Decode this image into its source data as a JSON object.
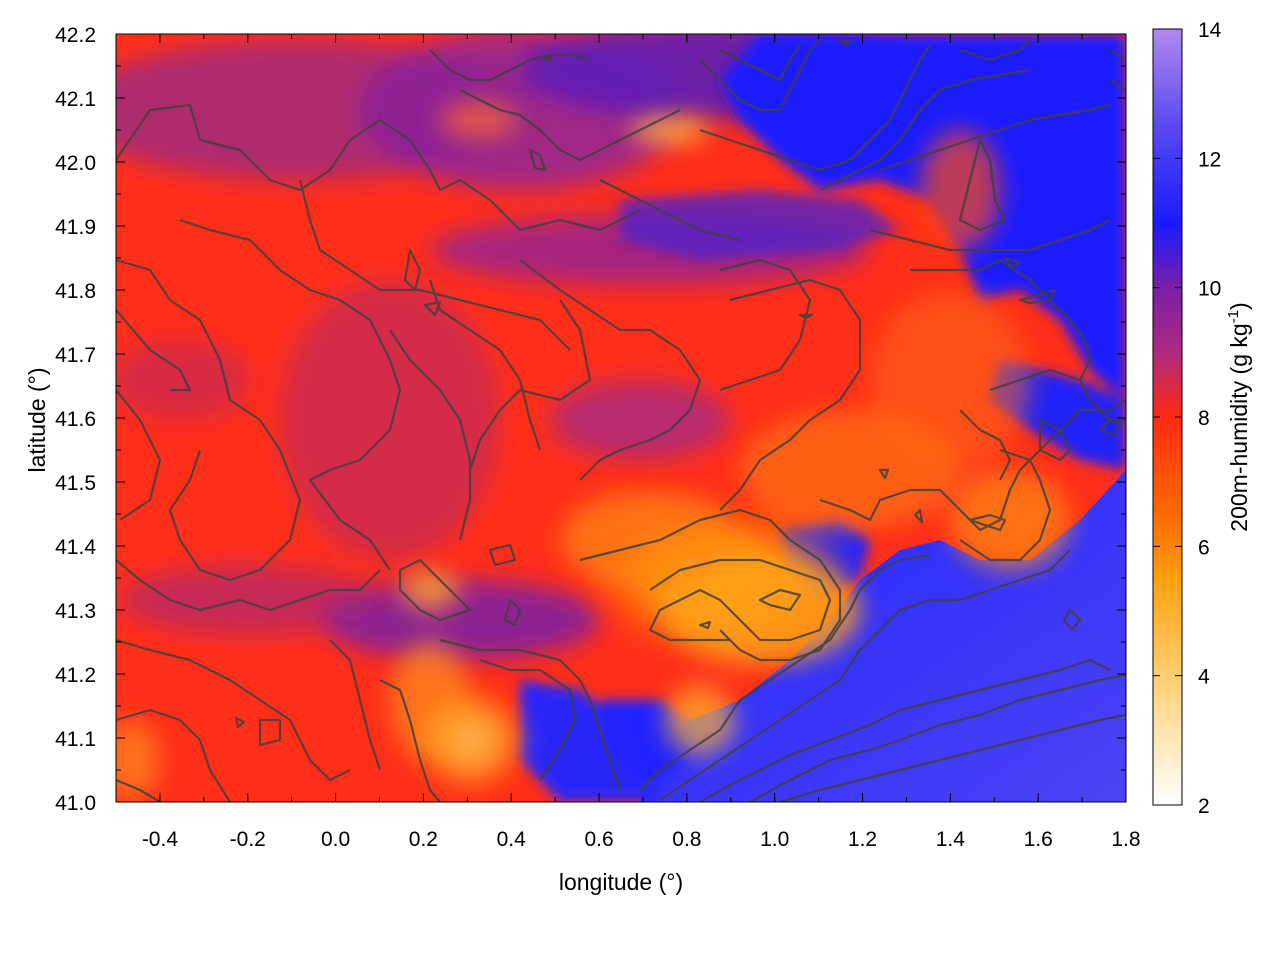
{
  "chart_data": {
    "type": "heatmap",
    "title": "",
    "xlabel": "longitude (°)",
    "ylabel": "latitude (°)",
    "colorbar_label_main": "200m-humidity (g kg",
    "colorbar_label_sup": "-1",
    "colorbar_label_end": ")",
    "xlim": [
      -0.5,
      1.8
    ],
    "ylim": [
      41.0,
      42.2
    ],
    "x_ticks": [
      "-0.4",
      "-0.2",
      "0.0",
      "0.2",
      "0.4",
      "0.6",
      "0.8",
      "1.0",
      "1.2",
      "1.4",
      "1.6",
      "1.8"
    ],
    "x_tick_values": [
      -0.4,
      -0.2,
      0.0,
      0.2,
      0.4,
      0.6,
      0.8,
      1.0,
      1.2,
      1.4,
      1.6,
      1.8
    ],
    "y_ticks": [
      "41.0",
      "41.1",
      "41.2",
      "41.3",
      "41.4",
      "41.5",
      "41.6",
      "41.7",
      "41.8",
      "41.9",
      "42.0",
      "42.1",
      "42.2"
    ],
    "y_tick_values": [
      41.0,
      41.1,
      41.2,
      41.3,
      41.4,
      41.5,
      41.6,
      41.7,
      41.8,
      41.9,
      42.0,
      42.1,
      42.2
    ],
    "colorbar_range": [
      2,
      14
    ],
    "colorbar_ticks": [
      "2",
      "4",
      "6",
      "8",
      "10",
      "12",
      "14"
    ],
    "colorbar_tick_values": [
      2,
      4,
      6,
      8,
      10,
      12,
      14
    ],
    "colormap": [
      "#ffffff",
      "#ffcf70",
      "#ffa010",
      "#ff6a00",
      "#ff2a10",
      "#b02a80",
      "#7a1fa8",
      "#1a1aff",
      "#5a4af0",
      "#b08af0"
    ],
    "colormap_stops": [
      2,
      4,
      5.5,
      6.5,
      8,
      9,
      10,
      11,
      12.5,
      14
    ],
    "contours": "topography isolines (dark gray)",
    "contour_color": "#404040"
  }
}
